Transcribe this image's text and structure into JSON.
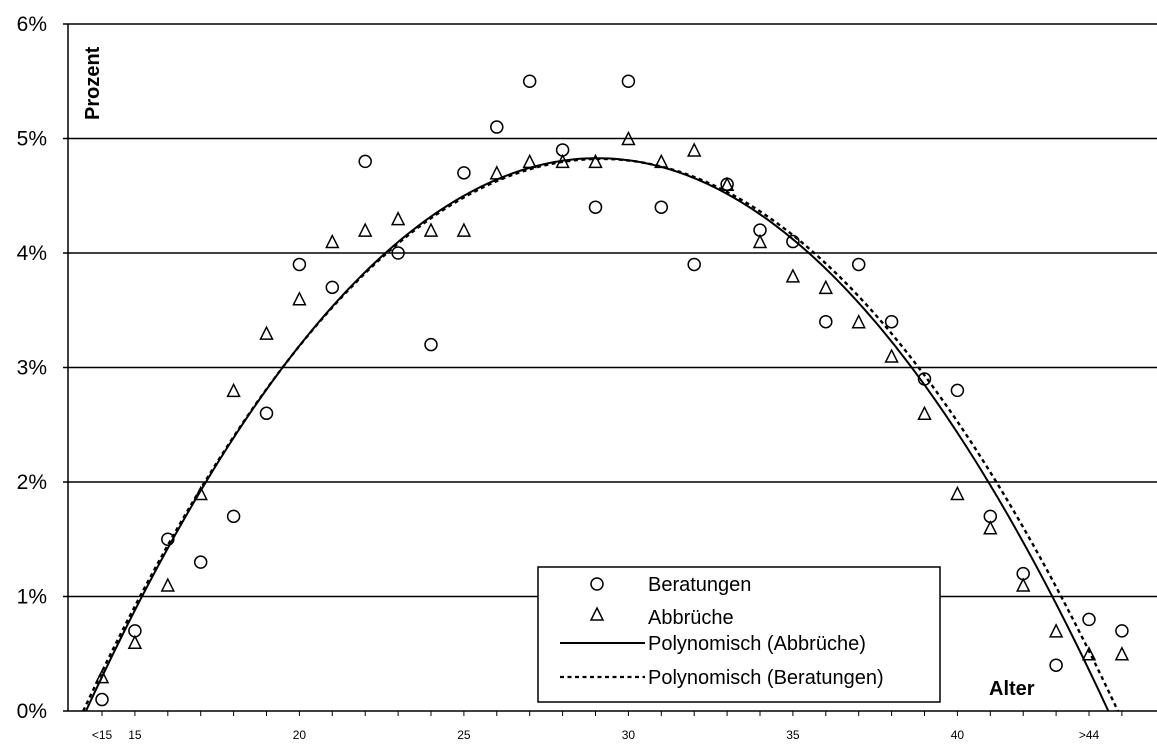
{
  "chart_data": {
    "type": "scatter",
    "title": "",
    "ylabel": "Prozent",
    "xlabel": "Alter",
    "xlim": [
      13,
      45
    ],
    "ylim": [
      0,
      6
    ],
    "grid": "horizontal",
    "legend_placement": "bottom-right",
    "y_ticks": [
      {
        "value": 0,
        "label": "0%"
      },
      {
        "value": 1,
        "label": "1%"
      },
      {
        "value": 2,
        "label": "2%"
      },
      {
        "value": 3,
        "label": "3%"
      },
      {
        "value": 4,
        "label": "4%"
      },
      {
        "value": 5,
        "label": "5%"
      },
      {
        "value": 6,
        "label": "6%"
      }
    ],
    "x_ticks": [
      {
        "value": 14,
        "label": "<15"
      },
      {
        "value": 15,
        "label": "15"
      },
      {
        "value": 20,
        "label": "20"
      },
      {
        "value": 25,
        "label": "25"
      },
      {
        "value": 30,
        "label": "30"
      },
      {
        "value": 35,
        "label": "35"
      },
      {
        "value": 40,
        "label": "40"
      },
      {
        "value": 44,
        "label": ">44"
      }
    ],
    "series": [
      {
        "name": "Beratungen",
        "marker": "circle",
        "x": [
          14,
          15,
          16,
          17,
          18,
          19,
          20,
          21,
          22,
          23,
          24,
          25,
          26,
          27,
          28,
          29,
          30,
          31,
          32,
          33,
          34,
          35,
          36,
          37,
          38,
          39,
          40,
          41,
          42,
          43,
          44,
          45
        ],
        "y": [
          0.1,
          0.7,
          1.5,
          1.3,
          1.7,
          2.6,
          3.9,
          3.7,
          4.8,
          4.0,
          3.2,
          4.7,
          5.1,
          5.5,
          4.9,
          4.4,
          5.5,
          4.4,
          3.9,
          4.6,
          4.2,
          4.1,
          3.4,
          3.9,
          3.4,
          2.9,
          2.8,
          1.7,
          1.2,
          0.4,
          0.8,
          0.7
        ]
      },
      {
        "name": "Abbrüche",
        "marker": "triangle",
        "x": [
          14,
          15,
          16,
          17,
          18,
          19,
          20,
          21,
          22,
          23,
          24,
          25,
          26,
          27,
          28,
          29,
          30,
          31,
          32,
          33,
          34,
          35,
          36,
          37,
          38,
          39,
          40,
          41,
          42,
          43,
          44,
          45
        ],
        "y": [
          0.3,
          0.6,
          1.1,
          1.9,
          2.8,
          3.3,
          3.6,
          4.1,
          4.2,
          4.3,
          4.2,
          4.2,
          4.7,
          4.8,
          4.8,
          4.8,
          5.0,
          4.8,
          4.9,
          4.6,
          4.1,
          3.8,
          3.7,
          3.4,
          3.1,
          2.6,
          1.9,
          1.6,
          1.1,
          0.7,
          0.5,
          0.5
        ]
      }
    ],
    "trendlines": [
      {
        "name": "Polynomisch (Abbrüche)",
        "style": "solid",
        "coefficients": [
          -0.02,
          1.162,
          -12.05
        ]
      },
      {
        "name": "Polynomisch (Beratungen)",
        "style": "dotted",
        "coefficients": [
          -0.0195,
          1.137,
          -11.752
        ]
      }
    ]
  }
}
